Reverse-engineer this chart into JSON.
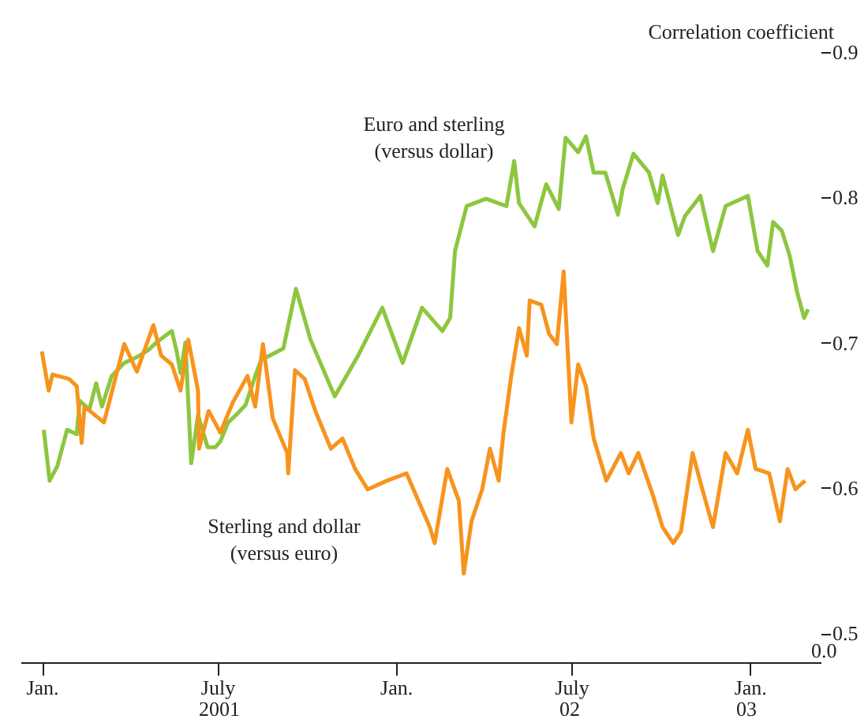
{
  "chart_data": {
    "type": "line",
    "ylabel": "Correlation coefficient",
    "xlim": [
      "2000-12-10",
      "2003-03-15"
    ],
    "ylim": [
      0.48,
      0.9
    ],
    "xticks": [
      {
        "value": "2001-01-01",
        "label": "Jan."
      },
      {
        "value": "2001-07-01",
        "label": "July"
      },
      {
        "value": "2002-01-01",
        "label": "Jan."
      },
      {
        "value": "2002-07-01",
        "label": "July"
      },
      {
        "value": "2003-01-01",
        "label": "Jan."
      }
    ],
    "yticks": [
      0.5,
      0.6,
      0.7,
      0.8,
      0.9
    ],
    "grid": false,
    "legend": false,
    "annotations": [
      "0.0",
      "2001",
      "02",
      "03"
    ],
    "series": [
      {
        "name": "Euro and sterling (versus dollar)",
        "color": "#8dc63f",
        "x": [
          "2001-01-03",
          "2001-01-09",
          "2001-01-17",
          "2001-01-27",
          "2001-02-06",
          "2001-02-09",
          "2001-02-19",
          "2001-02-26",
          "2001-03-04",
          "2001-03-14",
          "2001-03-27",
          "2001-04-09",
          "2001-04-21",
          "2001-04-29",
          "2001-05-09",
          "2001-05-15",
          "2001-05-20",
          "2001-05-24",
          "2001-05-29",
          "2001-06-04",
          "2001-06-11",
          "2001-06-21",
          "2001-06-29",
          "2001-07-04",
          "2001-07-12",
          "2001-07-20",
          "2001-07-30",
          "2001-08-09",
          "2001-08-15",
          "2001-09-07",
          "2001-09-20",
          "2001-10-05",
          "2001-10-30",
          "2001-11-23",
          "2001-12-18",
          "2002-01-08",
          "2002-01-28",
          "2002-02-18",
          "2002-02-26",
          "2002-03-03",
          "2002-03-15",
          "2002-04-04",
          "2002-04-25",
          "2002-05-03",
          "2002-05-08",
          "2002-05-24",
          "2002-06-05",
          "2002-06-18",
          "2002-06-25",
          "2002-07-08",
          "2002-07-16",
          "2002-07-24",
          "2002-08-05",
          "2002-08-18",
          "2002-08-23",
          "2002-09-03",
          "2002-09-19",
          "2002-09-28",
          "2002-10-03",
          "2002-10-19",
          "2002-10-26",
          "2002-11-11",
          "2002-11-24",
          "2002-12-07",
          "2002-12-30",
          "2003-01-09",
          "2003-01-19",
          "2003-01-25",
          "2003-02-03",
          "2003-02-11",
          "2003-02-19",
          "2003-02-26",
          "2003-03-02"
        ],
        "values": [
          0.64,
          0.605,
          0.615,
          0.64,
          0.637,
          0.66,
          0.654,
          0.672,
          0.656,
          0.677,
          0.686,
          0.69,
          0.695,
          0.7,
          0.705,
          0.708,
          0.694,
          0.679,
          0.7,
          0.617,
          0.65,
          0.628,
          0.628,
          0.632,
          0.645,
          0.65,
          0.657,
          0.677,
          0.688,
          0.696,
          0.737,
          0.702,
          0.663,
          0.691,
          0.724,
          0.686,
          0.724,
          0.708,
          0.717,
          0.763,
          0.794,
          0.799,
          0.794,
          0.825,
          0.796,
          0.78,
          0.809,
          0.792,
          0.841,
          0.831,
          0.842,
          0.817,
          0.817,
          0.788,
          0.806,
          0.83,
          0.817,
          0.796,
          0.815,
          0.774,
          0.787,
          0.801,
          0.763,
          0.794,
          0.801,
          0.763,
          0.753,
          0.783,
          0.777,
          0.76,
          0.734,
          0.717,
          0.723
        ]
      },
      {
        "name": "Sterling and dollar (versus euro)",
        "color": "#f7941d",
        "x": [
          "2001-01-01",
          "2001-01-08",
          "2001-01-12",
          "2001-01-29",
          "2001-02-06",
          "2001-02-11",
          "2001-02-14",
          "2001-03-06",
          "2001-03-27",
          "2001-04-09",
          "2001-04-26",
          "2001-05-04",
          "2001-05-15",
          "2001-05-24",
          "2001-06-01",
          "2001-06-11",
          "2001-06-12",
          "2001-06-22",
          "2001-07-04",
          "2001-07-17",
          "2001-08-01",
          "2001-08-09",
          "2001-08-17",
          "2001-08-22",
          "2001-08-27",
          "2001-09-11",
          "2001-09-12",
          "2001-09-19",
          "2001-09-29",
          "2001-10-10",
          "2001-10-26",
          "2001-11-07",
          "2001-11-20",
          "2001-12-03",
          "2001-12-23",
          "2002-01-12",
          "2002-02-05",
          "2002-02-10",
          "2002-02-23",
          "2002-03-07",
          "2002-03-12",
          "2002-03-20",
          "2002-03-31",
          "2002-04-08",
          "2002-04-17",
          "2002-04-22",
          "2002-04-30",
          "2002-05-08",
          "2002-05-16",
          "2002-05-19",
          "2002-05-31",
          "2002-06-08",
          "2002-06-16",
          "2002-06-23",
          "2002-07-01",
          "2002-07-08",
          "2002-07-16",
          "2002-07-24",
          "2002-08-06",
          "2002-08-21",
          "2002-08-29",
          "2002-09-08",
          "2002-09-23",
          "2002-10-03",
          "2002-10-14",
          "2002-10-22",
          "2002-11-03",
          "2002-11-13",
          "2002-11-24",
          "2002-12-07",
          "2002-12-19",
          "2002-12-30",
          "2003-01-07",
          "2003-01-21",
          "2003-02-01",
          "2003-02-09",
          "2003-02-17",
          "2003-02-27"
        ],
        "values": [
          0.694,
          0.667,
          0.678,
          0.675,
          0.67,
          0.631,
          0.656,
          0.645,
          0.699,
          0.68,
          0.712,
          0.691,
          0.685,
          0.667,
          0.702,
          0.667,
          0.627,
          0.653,
          0.638,
          0.659,
          0.677,
          0.656,
          0.699,
          0.674,
          0.648,
          0.624,
          0.61,
          0.681,
          0.675,
          0.653,
          0.627,
          0.634,
          0.613,
          0.599,
          0.605,
          0.61,
          0.573,
          0.562,
          0.613,
          0.591,
          0.541,
          0.577,
          0.599,
          0.627,
          0.605,
          0.638,
          0.677,
          0.71,
          0.691,
          0.729,
          0.726,
          0.706,
          0.699,
          0.749,
          0.645,
          0.685,
          0.67,
          0.634,
          0.605,
          0.624,
          0.61,
          0.624,
          0.595,
          0.573,
          0.562,
          0.57,
          0.624,
          0.599,
          0.573,
          0.624,
          0.61,
          0.64,
          0.613,
          0.61,
          0.577,
          0.613,
          0.599,
          0.605
        ]
      }
    ]
  }
}
